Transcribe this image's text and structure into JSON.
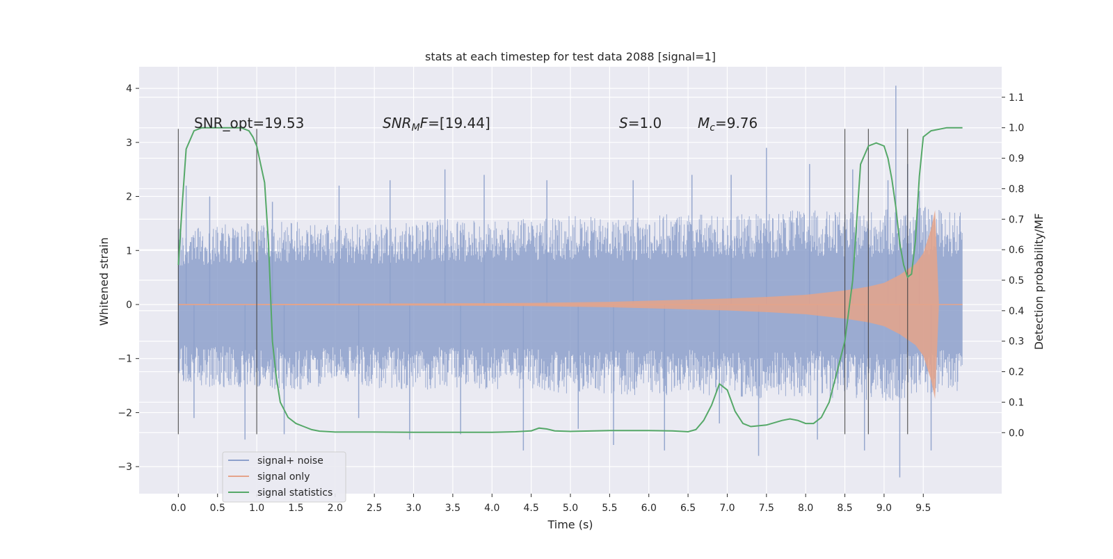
{
  "chart_data": {
    "type": "line",
    "title": "stats at each timestep for test data 2088 [signal=1]",
    "xlabel": "Time (s)",
    "ylabel": "Whitened strain",
    "ylabel_right": "Detection probability/MF",
    "xlim": [
      -0.5,
      10.5
    ],
    "ylim": [
      -3.5,
      4.4
    ],
    "ylim_right": [
      -0.2,
      1.2
    ],
    "grid": true,
    "x_ticks": [
      "0.0",
      "0.5",
      "1.0",
      "1.5",
      "2.0",
      "2.5",
      "3.0",
      "3.5",
      "4.0",
      "4.5",
      "5.0",
      "5.5",
      "6.0",
      "6.5",
      "7.0",
      "7.5",
      "8.0",
      "8.5",
      "9.0",
      "9.5"
    ],
    "y_ticks": [
      "4",
      "3",
      "2",
      "1",
      "0",
      "−1",
      "−2",
      "−3"
    ],
    "y_ticks_right": [
      "1.1",
      "1.0",
      "0.9",
      "0.8",
      "0.7",
      "0.6",
      "0.5",
      "0.4",
      "0.3",
      "0.2",
      "0.1",
      "0.0"
    ],
    "legend": {
      "position": "lower-left",
      "entries": [
        {
          "label": "signal+ noise",
          "color": "#8da0cb"
        },
        {
          "label": "signal only",
          "color": "#e5a38a"
        },
        {
          "label": "signal statistics",
          "color": "#55a868"
        }
      ]
    },
    "annotations": {
      "snr_opt": "SNR_opt=19.53",
      "snr_mf": "=[19.44]",
      "snr_mf_sym": "SNR",
      "snr_mf_sub": "M",
      "snr_mf_tail": "F",
      "s_sym": "S",
      "s_val": "=1.0",
      "mc_sym": "M",
      "mc_sub": "c",
      "mc_val": "=9.76"
    },
    "vertical_markers": [
      0.0,
      1.0,
      8.5,
      8.8,
      9.3
    ],
    "series": [
      {
        "name": "signal+ noise",
        "color": "#8da0cb",
        "x_range": [
          0.0,
          10.0
        ],
        "envelope_pos": [
          1.3,
          1.35,
          1.4,
          1.4,
          1.35,
          1.35,
          1.4,
          1.45,
          1.4,
          1.45,
          1.5,
          1.45,
          1.5,
          1.55,
          1.5,
          1.55,
          1.6,
          1.55,
          1.6,
          1.65,
          1.55
        ],
        "envelope_neg": [
          -1.35,
          -1.4,
          -1.4,
          -1.45,
          -1.35,
          -1.4,
          -1.45,
          -1.4,
          -1.45,
          -1.45,
          -1.5,
          -1.5,
          -1.55,
          -1.5,
          -1.55,
          -1.6,
          -1.55,
          -1.6,
          -1.65,
          -1.55,
          -1.5
        ],
        "peak_samples": [
          [
            0.1,
            2.2
          ],
          [
            0.2,
            -2.1
          ],
          [
            0.4,
            2.0
          ],
          [
            0.85,
            -2.5
          ],
          [
            1.2,
            1.9
          ],
          [
            1.35,
            -2.4
          ],
          [
            2.05,
            2.2
          ],
          [
            2.3,
            -2.1
          ],
          [
            2.7,
            2.3
          ],
          [
            2.95,
            -2.5
          ],
          [
            3.4,
            2.5
          ],
          [
            3.6,
            -2.4
          ],
          [
            3.9,
            2.4
          ],
          [
            4.4,
            -2.7
          ],
          [
            4.7,
            2.3
          ],
          [
            5.1,
            -2.3
          ],
          [
            5.55,
            -2.6
          ],
          [
            5.8,
            2.3
          ],
          [
            6.2,
            -2.7
          ],
          [
            6.55,
            2.4
          ],
          [
            6.9,
            -2.2
          ],
          [
            7.05,
            2.4
          ],
          [
            7.4,
            -2.8
          ],
          [
            7.5,
            2.9
          ],
          [
            8.05,
            2.6
          ],
          [
            8.15,
            -2.5
          ],
          [
            8.6,
            2.5
          ],
          [
            8.75,
            -2.7
          ],
          [
            9.05,
            2.3
          ],
          [
            9.15,
            4.05
          ],
          [
            9.2,
            -3.2
          ],
          [
            9.3,
            2.6
          ],
          [
            9.45,
            2.1
          ],
          [
            9.6,
            -2.7
          ]
        ]
      },
      {
        "name": "signal only",
        "color": "#e5a38a",
        "x": [
          0.0,
          1.0,
          2.0,
          3.0,
          4.0,
          4.5,
          5.0,
          5.5,
          6.0,
          6.5,
          7.0,
          7.5,
          8.0,
          8.5,
          8.8,
          9.0,
          9.2,
          9.4,
          9.5,
          9.6,
          9.65,
          9.7,
          10.0
        ],
        "amplitude": [
          0.01,
          0.01,
          0.015,
          0.02,
          0.025,
          0.03,
          0.04,
          0.05,
          0.07,
          0.09,
          0.11,
          0.14,
          0.18,
          0.26,
          0.33,
          0.4,
          0.55,
          0.75,
          0.95,
          1.4,
          1.75,
          0.0,
          0.0
        ]
      },
      {
        "name": "signal statistics",
        "color": "#55a868",
        "axis": "right",
        "x": [
          0.0,
          0.05,
          0.1,
          0.2,
          0.3,
          0.5,
          0.7,
          0.8,
          0.9,
          0.95,
          1.0,
          1.05,
          1.1,
          1.15,
          1.2,
          1.25,
          1.3,
          1.4,
          1.5,
          1.6,
          1.7,
          1.8,
          2.0,
          2.5,
          3.0,
          3.5,
          4.0,
          4.3,
          4.5,
          4.6,
          4.7,
          4.8,
          5.0,
          5.5,
          6.0,
          6.3,
          6.5,
          6.6,
          6.7,
          6.8,
          6.9,
          7.0,
          7.1,
          7.2,
          7.3,
          7.5,
          7.7,
          7.8,
          7.9,
          8.0,
          8.1,
          8.2,
          8.3,
          8.4,
          8.5,
          8.6,
          8.7,
          8.8,
          8.9,
          9.0,
          9.05,
          9.1,
          9.15,
          9.2,
          9.25,
          9.3,
          9.35,
          9.4,
          9.45,
          9.5,
          9.6,
          9.8,
          10.0
        ],
        "values": [
          0.55,
          0.75,
          0.93,
          0.99,
          1.0,
          1.0,
          1.0,
          1.0,
          0.99,
          0.97,
          0.94,
          0.88,
          0.82,
          0.62,
          0.3,
          0.18,
          0.1,
          0.05,
          0.03,
          0.02,
          0.01,
          0.005,
          0.002,
          0.002,
          0.001,
          0.001,
          0.001,
          0.003,
          0.006,
          0.015,
          0.012,
          0.006,
          0.004,
          0.007,
          0.007,
          0.006,
          0.003,
          0.01,
          0.04,
          0.09,
          0.16,
          0.14,
          0.07,
          0.03,
          0.02,
          0.025,
          0.04,
          0.045,
          0.04,
          0.03,
          0.03,
          0.05,
          0.1,
          0.2,
          0.3,
          0.5,
          0.88,
          0.94,
          0.95,
          0.94,
          0.9,
          0.83,
          0.74,
          0.62,
          0.55,
          0.51,
          0.52,
          0.63,
          0.84,
          0.97,
          0.99,
          1.0,
          1.0
        ]
      }
    ]
  }
}
